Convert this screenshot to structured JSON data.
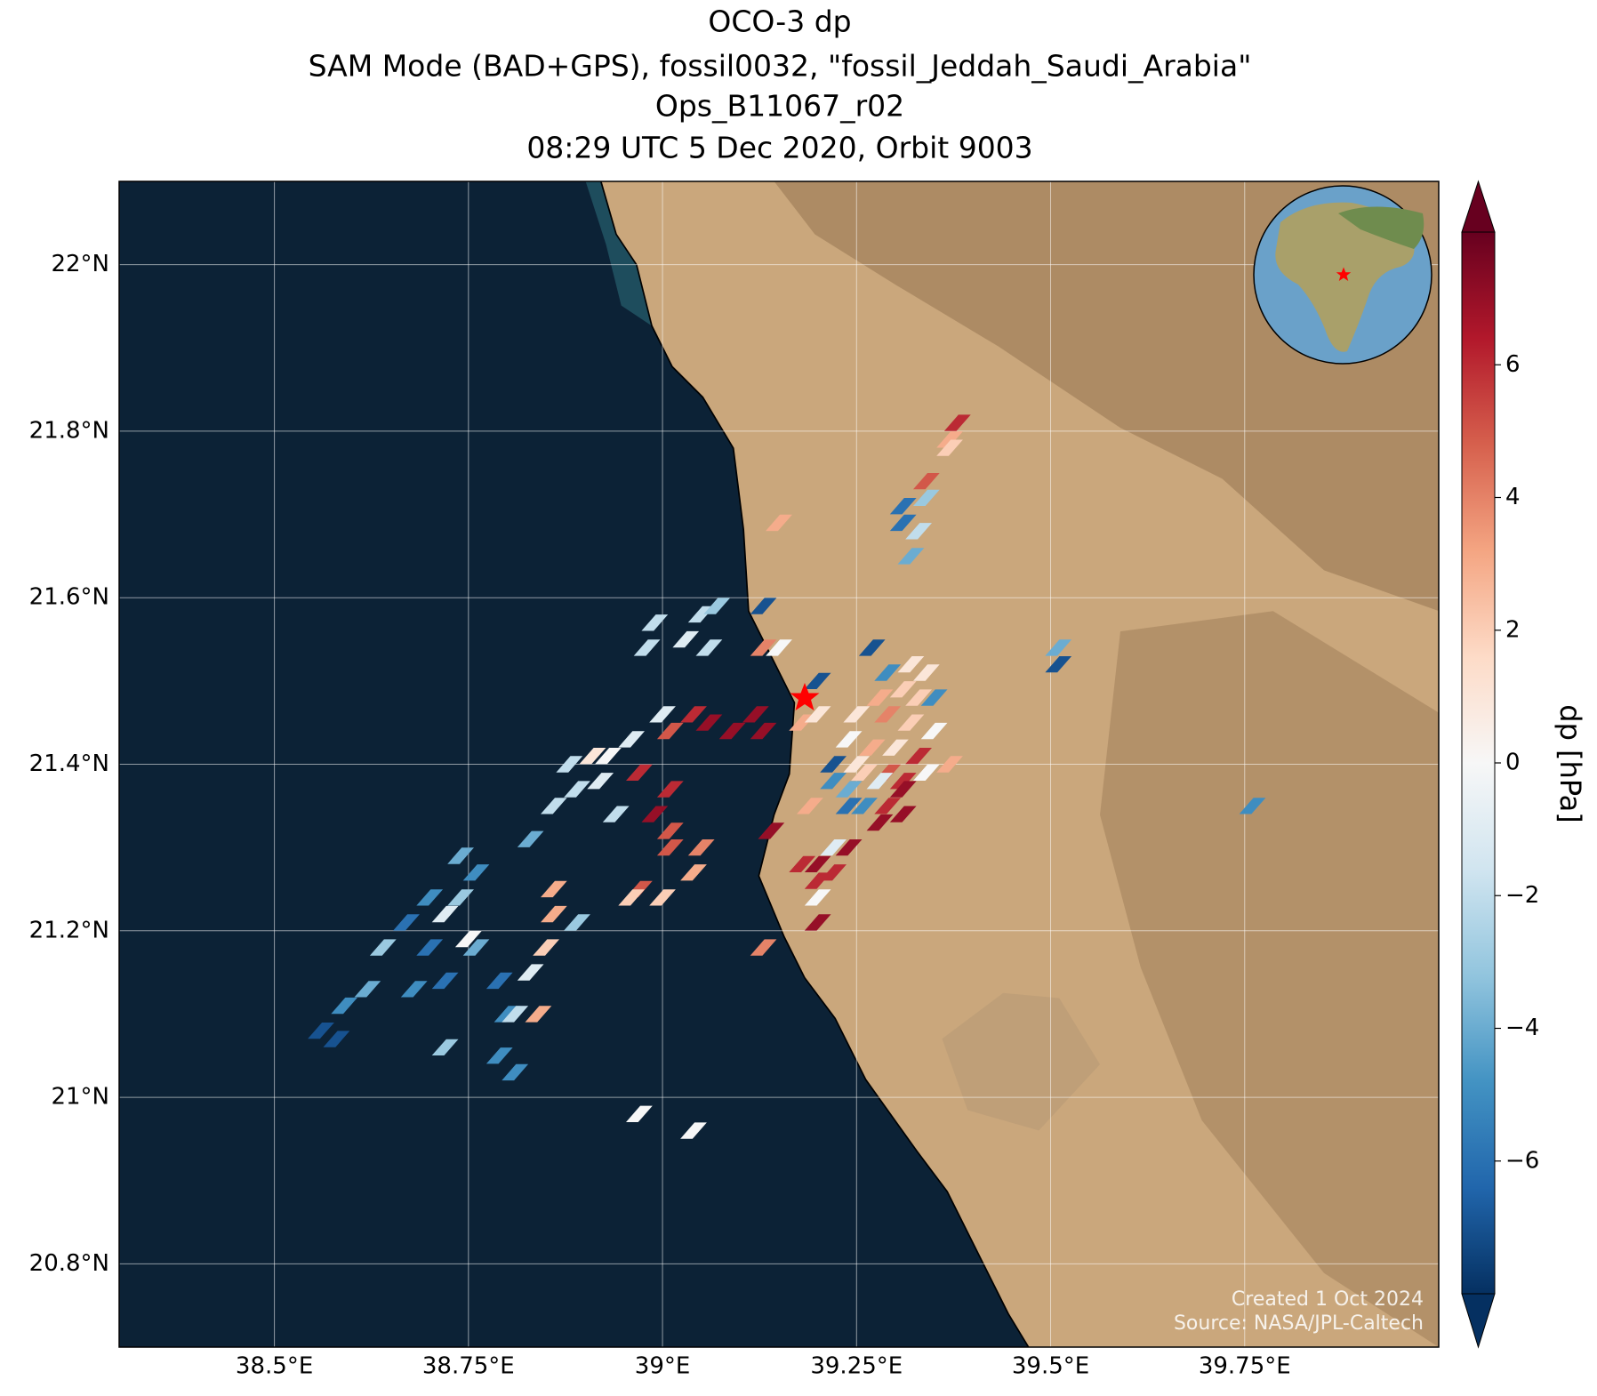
{
  "chart_data": {
    "type": "map",
    "title": [
      "OCO-3 dp",
      "SAM Mode (BAD+GPS), fossil0032, \"fossil_Jeddah_Saudi_Arabia\"",
      "Ops_B11067_r02",
      "08:29 UTC 5 Dec 2020, Orbit 9003"
    ],
    "xlim": [
      38.3,
      40.0
    ],
    "ylim": [
      20.7,
      22.1
    ],
    "xticks": [
      {
        "value": 38.5,
        "label": "38.5°E"
      },
      {
        "value": 38.75,
        "label": "38.75°E"
      },
      {
        "value": 39,
        "label": "39°E"
      },
      {
        "value": 39.25,
        "label": "39.25°E"
      },
      {
        "value": 39.5,
        "label": "39.5°E"
      },
      {
        "value": 39.75,
        "label": "39.75°E"
      }
    ],
    "yticks": [
      {
        "value": 20.8,
        "label": "20.8°N"
      },
      {
        "value": 21,
        "label": "21°N"
      },
      {
        "value": 21.2,
        "label": "21.2°N"
      },
      {
        "value": 21.4,
        "label": "21.4°N"
      },
      {
        "value": 21.6,
        "label": "21.6°N"
      },
      {
        "value": 21.8,
        "label": "21.8°N"
      },
      {
        "value": 22,
        "label": "22°N"
      }
    ],
    "grid": true,
    "colorbar": {
      "label": "dp [hPa]",
      "clim": [
        -8,
        8
      ],
      "ticks": [
        {
          "value": -6,
          "label": "−6"
        },
        {
          "value": -4,
          "label": "−4"
        },
        {
          "value": -2,
          "label": "−2"
        },
        0,
        2,
        4,
        6
      ]
    },
    "colormap": [
      "#053061",
      "#2166ac",
      "#4393c3",
      "#92c5de",
      "#d1e5f0",
      "#f7f7f7",
      "#fddbc7",
      "#f4a582",
      "#d6604d",
      "#b2182b",
      "#67001f"
    ],
    "lon": [
      39.38,
      39.37,
      39.37,
      39.34,
      39.31,
      39.34,
      39.31,
      39.33,
      39.32,
      39.15,
      39.51,
      39.51,
      39.76,
      38.99,
      39.05,
      39.07,
      39.03,
      39.06,
      38.98,
      39.13,
      39.13,
      39.15,
      39.2,
      39.04,
      39.06,
      39.09,
      39.12,
      39.13,
      39.01,
      39.0,
      38.96,
      38.93,
      38.91,
      38.88,
      38.92,
      38.89,
      38.86,
      38.94,
      38.83,
      38.97,
      39.01,
      38.99,
      39.01,
      39.05,
      39.01,
      39.04,
      38.97,
      39.0,
      38.96,
      39.14,
      38.74,
      38.76,
      38.74,
      38.7,
      38.72,
      38.75,
      38.67,
      38.64,
      38.7,
      38.76,
      38.62,
      38.59,
      38.56,
      38.58,
      38.68,
      38.72,
      38.72,
      38.79,
      38.83,
      38.8,
      38.81,
      38.84,
      38.79,
      38.81,
      38.86,
      38.86,
      38.89,
      38.85,
      39.13,
      38.97,
      39.04,
      39.27,
      39.29,
      39.32,
      39.34,
      39.31,
      39.28,
      39.33,
      39.35,
      39.25,
      39.29,
      39.32,
      39.35,
      39.24,
      39.27,
      39.3,
      39.33,
      39.22,
      39.25,
      39.29,
      39.31,
      39.22,
      39.24,
      39.28,
      39.31,
      39.26,
      39.29,
      39.24,
      39.28,
      39.31,
      39.26,
      39.34,
      39.37,
      39.24,
      39.22,
      39.2,
      39.22,
      39.2,
      39.2,
      39.2,
      39.18,
      39.19,
      39.18,
      39.2
    ],
    "lat": [
      21.81,
      21.79,
      21.78,
      21.74,
      21.71,
      21.72,
      21.69,
      21.68,
      21.65,
      21.69,
      21.54,
      21.52,
      21.35,
      21.57,
      21.58,
      21.59,
      21.55,
      21.54,
      21.54,
      21.59,
      21.54,
      21.54,
      21.5,
      21.46,
      21.45,
      21.44,
      21.46,
      21.44,
      21.44,
      21.46,
      21.43,
      21.41,
      21.41,
      21.4,
      21.38,
      21.37,
      21.35,
      21.34,
      21.31,
      21.39,
      21.37,
      21.34,
      21.32,
      21.3,
      21.3,
      21.27,
      21.25,
      21.24,
      21.24,
      21.32,
      21.29,
      21.27,
      21.24,
      21.24,
      21.22,
      21.19,
      21.21,
      21.18,
      21.18,
      21.18,
      21.13,
      21.11,
      21.08,
      21.07,
      21.13,
      21.14,
      21.06,
      21.14,
      21.15,
      21.1,
      21.1,
      21.1,
      21.05,
      21.03,
      21.25,
      21.22,
      21.21,
      21.18,
      21.18,
      20.98,
      20.96,
      21.54,
      21.51,
      21.52,
      21.51,
      21.49,
      21.48,
      21.48,
      21.48,
      21.46,
      21.46,
      21.45,
      21.44,
      21.43,
      21.42,
      21.42,
      21.41,
      21.4,
      21.4,
      21.39,
      21.38,
      21.38,
      21.37,
      21.38,
      21.37,
      21.35,
      21.35,
      21.35,
      21.33,
      21.34,
      21.39,
      21.39,
      21.4,
      21.3,
      21.3,
      21.28,
      21.27,
      21.26,
      21.24,
      21.21,
      21.28,
      21.35,
      21.45,
      21.46
    ],
    "values": [
      6,
      3,
      2,
      5,
      -6,
      -3,
      -6,
      -2,
      -4,
      3,
      -4,
      -7,
      -5,
      -2,
      -2,
      -3,
      -1,
      -2,
      -2,
      -7,
      4,
      0,
      -7,
      6,
      7,
      7,
      7,
      7,
      5,
      -1,
      -1,
      0,
      1,
      -2,
      -1,
      -2,
      -2,
      -2,
      -4,
      6,
      6,
      7,
      5,
      4,
      5,
      3,
      5,
      2,
      2,
      7,
      -4,
      -5,
      -3,
      -5,
      -1,
      0,
      -6,
      -3,
      -6,
      -4,
      -4,
      -5,
      -7,
      -7,
      -5,
      -6,
      -3,
      -6,
      -1,
      -5,
      -2,
      3,
      -5,
      -5,
      3,
      3,
      -3,
      2,
      4,
      0,
      0,
      -7,
      -5,
      1,
      1,
      2,
      3,
      2,
      -5,
      1,
      4,
      2,
      0,
      0,
      3,
      1,
      6,
      -7,
      1,
      5,
      6,
      -5,
      -4,
      -1,
      7,
      -5,
      6,
      -6,
      7,
      7,
      2,
      0,
      3,
      7,
      -1,
      7,
      6,
      6,
      0,
      7,
      6,
      3,
      3,
      1
    ],
    "notes": [
      "Created 1 Oct 2024",
      "Source: NASA/JPL-Caltech"
    ]
  }
}
